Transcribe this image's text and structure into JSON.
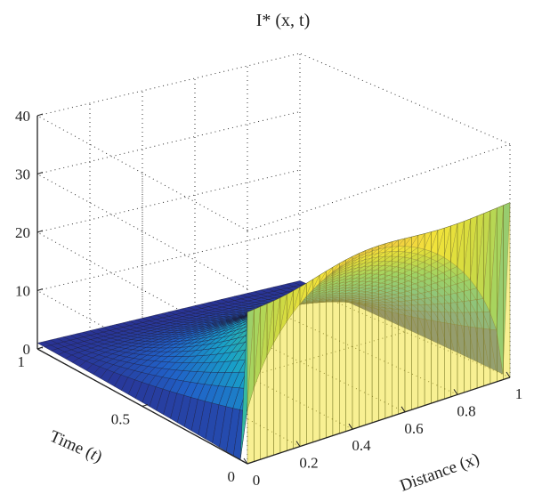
{
  "chart_data": {
    "type": "surface",
    "title": "I* (x, t)",
    "xlabel": "Distance (x)",
    "ylabel": "Time (t)",
    "zlabel": "",
    "xlim": [
      0,
      1
    ],
    "ylim": [
      0,
      1
    ],
    "zlim": [
      0,
      40
    ],
    "xticks": [
      "0",
      "0.2",
      "0.4",
      "0.6",
      "0.8",
      "1"
    ],
    "xtick_values": [
      0,
      0.2,
      0.4,
      0.6,
      0.8,
      1
    ],
    "yticks": [
      "0",
      "0.5",
      "1"
    ],
    "ytick_values": [
      0,
      0.5,
      1
    ],
    "zticks": [
      "0",
      "10",
      "20",
      "30",
      "40"
    ],
    "ztick_values": [
      0,
      10,
      20,
      30,
      40
    ],
    "grid": true,
    "colormap": "parula",
    "colors": {
      "low": "#2b2a8a",
      "mid": "#20b2aa",
      "high": "#f2e33b",
      "peak": "#f0a050"
    },
    "surface_model": {
      "shape_in_x": "x*(1-x)",
      "peak_x": 0.5,
      "peak_value_at_t0": 30,
      "edge_value_at_x0_t0": 26,
      "edge_value_at_x1_t0": 30,
      "value_at_t1": 1
    }
  }
}
